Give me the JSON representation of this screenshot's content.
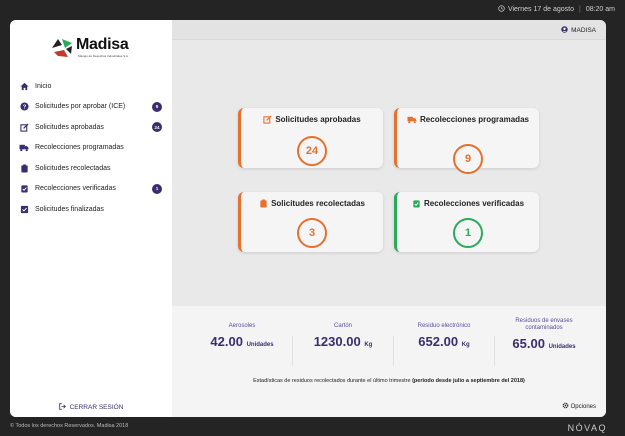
{
  "topbar": {
    "date": "Viernes 17 de agosto",
    "time": "08:20 am"
  },
  "brand": {
    "name": "Madisa",
    "tagline": "Manejo de Desechos Industriales S.A."
  },
  "user": {
    "name": "MADISA"
  },
  "sidebar": {
    "items": [
      {
        "label": "Inicio",
        "icon": "home-icon"
      },
      {
        "label": "Solicitudes por aprobar (ICE)",
        "icon": "question-icon",
        "badge": "9"
      },
      {
        "label": "Solicitudes aprobadas",
        "icon": "edit-icon",
        "badge": "24"
      },
      {
        "label": "Recolecciones programadas",
        "icon": "truck-icon"
      },
      {
        "label": "Solicitudes recolectadas",
        "icon": "clipboard-icon"
      },
      {
        "label": "Recolecciones verificadas",
        "icon": "clipboard-check-icon",
        "badge": "1"
      },
      {
        "label": "Solicitudes finalizadas",
        "icon": "check-square-icon"
      }
    ],
    "logout": "CERRAR SESIÓN"
  },
  "cards": [
    {
      "title": "Solicitudes aprobadas",
      "value": "24",
      "color": "#e6702d"
    },
    {
      "title": "Recolecciones programadas",
      "value": "9",
      "color": "#e6702d"
    },
    {
      "title": "Solicitudes recolectadas",
      "value": "3",
      "color": "#e6702d"
    },
    {
      "title": "Recolecciones verificadas",
      "value": "1",
      "color": "#2aab5a"
    }
  ],
  "stats": [
    {
      "label": "Aerosoles",
      "value": "42.00",
      "unit": "Unidades"
    },
    {
      "label": "Cartón",
      "value": "1230.00",
      "unit": "Kg"
    },
    {
      "label": "Residuo electrónico",
      "value": "652.00",
      "unit": "Kg"
    },
    {
      "label": "Residuos de envases contaminados",
      "value": "65.00",
      "unit": "Unidades"
    }
  ],
  "stats_note": "Estadísticas de residuos recolectados durante el último trimestre",
  "stats_period": "(periodo desde julio a septiembre del 2018)",
  "options": "Opciones",
  "footer": "© Todos los derechos Reservados. Madisa 2018",
  "vendor": "NÓVAQ",
  "colors": {
    "accent": "#e6702d",
    "success": "#2aab5a",
    "primary": "#3b2d6e"
  }
}
